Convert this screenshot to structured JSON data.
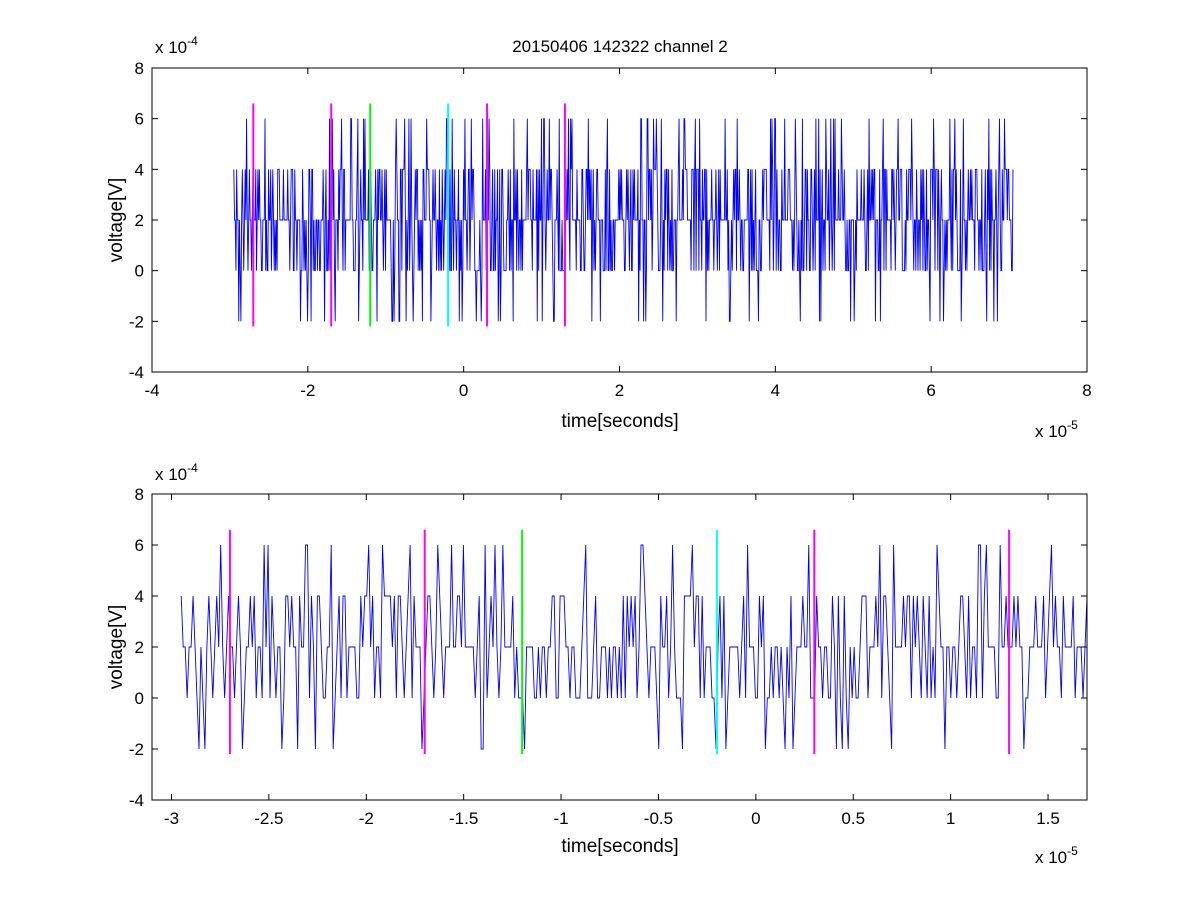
{
  "chart_data": [
    {
      "type": "line",
      "title": "20150406 142322 channel 2",
      "xlabel": "time[seconds]",
      "ylabel": "voltage[V]",
      "xlim": [
        -4,
        8
      ],
      "ylim": [
        -4,
        8
      ],
      "xticks": [
        -4,
        -2,
        0,
        2,
        4,
        6,
        8
      ],
      "yticks": [
        -4,
        -2,
        0,
        2,
        4,
        6,
        8
      ],
      "x_exponent": {
        "base": "x 10",
        "power": "-5"
      },
      "y_exponent": {
        "base": "x 10",
        "power": "-4"
      },
      "grid": false,
      "series": [
        {
          "color": "#0000ff",
          "x_range": [
            -2.95,
            7.05
          ],
          "note_levels": [
            -2,
            0,
            2,
            4,
            6
          ],
          "values_sample": [
            4,
            2,
            2,
            0,
            4,
            2,
            2,
            -2,
            2,
            0,
            -2,
            2,
            4,
            2,
            0,
            2,
            4,
            2,
            6,
            2,
            0,
            2,
            4,
            2,
            2,
            0,
            2,
            4,
            2,
            2
          ]
        }
      ],
      "markers": [
        {
          "x": -2.7,
          "color": "#ff00ff",
          "y_range": [
            -2.2,
            6.6
          ]
        },
        {
          "x": -1.7,
          "color": "#ff00ff",
          "y_range": [
            -2.2,
            6.6
          ]
        },
        {
          "x": -1.2,
          "color": "#00ff00",
          "y_range": [
            -2.2,
            6.6
          ]
        },
        {
          "x": -0.2,
          "color": "#00ffff",
          "y_range": [
            -2.2,
            6.6
          ]
        },
        {
          "x": 0.3,
          "color": "#ff00ff",
          "y_range": [
            -2.2,
            6.6
          ]
        },
        {
          "x": 1.3,
          "color": "#ff00ff",
          "y_range": [
            -2.2,
            6.6
          ]
        }
      ]
    },
    {
      "type": "line",
      "title": "",
      "xlabel": "time[seconds]",
      "ylabel": "voltage[V]",
      "xlim": [
        -3.1,
        1.7
      ],
      "ylim": [
        -4,
        8
      ],
      "xticks": [
        -3,
        -2.5,
        -2,
        -1.5,
        -1,
        -0.5,
        0,
        0.5,
        1,
        1.5
      ],
      "yticks": [
        -4,
        -2,
        0,
        2,
        4,
        6,
        8
      ],
      "x_exponent": {
        "base": "x 10",
        "power": "-5"
      },
      "y_exponent": {
        "base": "x 10",
        "power": "-4"
      },
      "grid": false,
      "series": [
        {
          "color": "#0000ff",
          "x_range": [
            -2.95,
            1.7
          ],
          "values_sample": [
            4,
            2,
            2,
            0,
            2,
            2,
            4,
            2,
            0,
            -2,
            2,
            0,
            -2,
            2,
            4,
            2,
            0,
            2,
            4,
            2,
            6,
            2,
            0,
            2,
            4,
            2,
            2,
            0,
            2,
            4
          ]
        }
      ],
      "markers": [
        {
          "x": -2.7,
          "color": "#ff00ff",
          "y_range": [
            -2.2,
            6.6
          ]
        },
        {
          "x": -1.7,
          "color": "#ff00ff",
          "y_range": [
            -2.2,
            6.6
          ]
        },
        {
          "x": -1.2,
          "color": "#00ff00",
          "y_range": [
            -2.2,
            6.6
          ]
        },
        {
          "x": -0.2,
          "color": "#00ffff",
          "y_range": [
            -2.2,
            6.6
          ]
        },
        {
          "x": 0.3,
          "color": "#ff00ff",
          "y_range": [
            -2.2,
            6.6
          ]
        },
        {
          "x": 1.3,
          "color": "#ff00ff",
          "y_range": [
            -2.2,
            6.6
          ]
        }
      ]
    }
  ]
}
